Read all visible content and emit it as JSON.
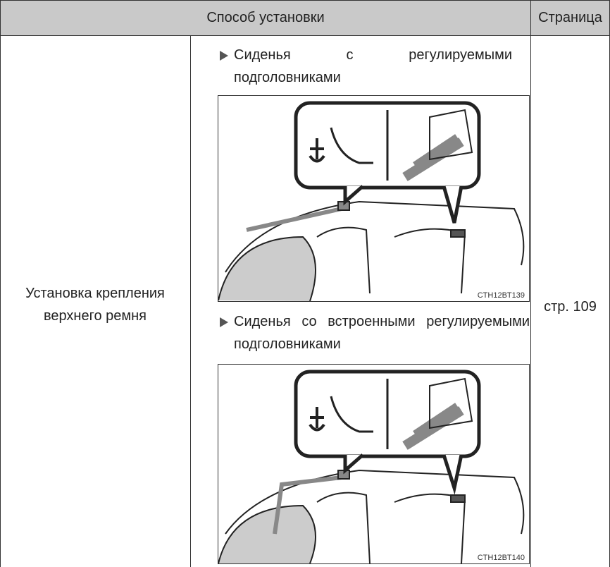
{
  "table": {
    "header": [
      "Способ установки",
      "Страница"
    ],
    "rows": [
      {
        "method": "Установка крепления верхнего ремня",
        "options": [
          {
            "label": "Сиденья с регулируемыми подголовниками",
            "figure": "CTH12BT139"
          },
          {
            "label": "Сиденья со встроенными регулируемыми подголовниками",
            "figure": "CTH12BT140"
          }
        ],
        "page": "стр. 109"
      }
    ]
  }
}
